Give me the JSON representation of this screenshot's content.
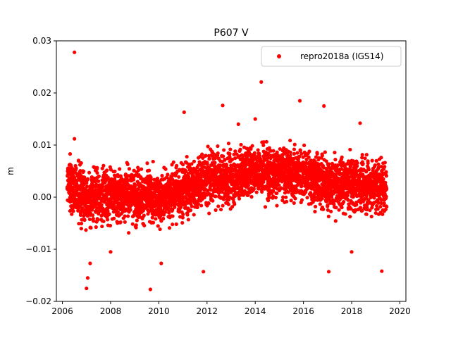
{
  "chart_data": {
    "type": "scatter",
    "title": "P607 V",
    "xlabel": "",
    "ylabel": "m",
    "xlim": [
      2005.75,
      2020.25
    ],
    "ylim": [
      -0.02,
      0.03
    ],
    "x_ticks": [
      2006,
      2008,
      2010,
      2012,
      2014,
      2016,
      2018,
      2020
    ],
    "y_ticks": [
      -0.02,
      -0.01,
      0.0,
      0.01,
      0.02,
      0.03
    ],
    "x_tick_labels": [
      "2006",
      "2008",
      "2010",
      "2012",
      "2014",
      "2016",
      "2018",
      "2020"
    ],
    "y_tick_labels": [
      "−0.02",
      "−0.01",
      "0.00",
      "0.01",
      "0.02",
      "0.03"
    ],
    "grid": false,
    "legend_position": "top-right",
    "series": [
      {
        "name": "repro2018a (IGS14)",
        "color": "#ff0000",
        "marker": "circle",
        "x_range": [
          2006.2,
          2019.45
        ],
        "trend": [
          [
            2006.2,
            0.0025
          ],
          [
            2007.0,
            -0.0005
          ],
          [
            2008.0,
            0.0005
          ],
          [
            2009.0,
            0.0005
          ],
          [
            2010.0,
            -0.0005
          ],
          [
            2011.0,
            0.0015
          ],
          [
            2012.0,
            0.0035
          ],
          [
            2013.0,
            0.0035
          ],
          [
            2014.0,
            0.0055
          ],
          [
            2015.0,
            0.0045
          ],
          [
            2016.0,
            0.0045
          ],
          [
            2017.0,
            0.0025
          ],
          [
            2018.0,
            0.0025
          ],
          [
            2019.45,
            0.002
          ]
        ],
        "scatter_sd": 0.0038,
        "outliers": [
          [
            2006.5,
            0.0278
          ],
          [
            2014.25,
            0.0221
          ],
          [
            2015.85,
            0.0185
          ],
          [
            2016.85,
            0.0175
          ],
          [
            2012.65,
            0.0176
          ],
          [
            2011.05,
            0.0163
          ],
          [
            2007.0,
            -0.0175
          ],
          [
            2009.65,
            -0.0177
          ],
          [
            2007.05,
            -0.0155
          ],
          [
            2017.05,
            -0.0143
          ],
          [
            2019.25,
            -0.0142
          ],
          [
            2011.85,
            -0.0143
          ],
          [
            2010.1,
            -0.0127
          ],
          [
            2007.15,
            -0.0127
          ],
          [
            2018.0,
            -0.0105
          ],
          [
            2008.0,
            -0.0105
          ],
          [
            2018.35,
            0.0142
          ],
          [
            2014.0,
            0.015
          ],
          [
            2013.3,
            0.014
          ],
          [
            2006.5,
            0.0112
          ]
        ]
      }
    ]
  }
}
